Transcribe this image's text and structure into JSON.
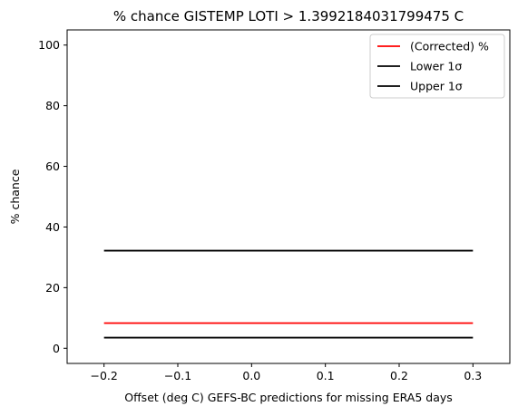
{
  "chart_data": {
    "type": "line",
    "title": "% chance GISTEMP LOTI > 1.3992184031799475 C",
    "xlabel": "Offset (deg C) GEFS-BC predictions for missing ERA5 days",
    "ylabel": "% chance",
    "xlim": [
      -0.25,
      0.35
    ],
    "ylim": [
      -5,
      105
    ],
    "xticks": [
      -0.2,
      -0.1,
      0.0,
      0.1,
      0.2,
      0.3
    ],
    "xtick_labels": [
      "−0.2",
      "−0.1",
      "0.0",
      "0.1",
      "0.2",
      "0.3"
    ],
    "yticks": [
      0,
      20,
      40,
      60,
      80,
      100
    ],
    "ytick_labels": [
      "0",
      "20",
      "40",
      "60",
      "80",
      "100"
    ],
    "grid": false,
    "legend_position": "top-right",
    "series": [
      {
        "name": "(Corrected) %",
        "color": "#ff0000",
        "x": [
          -0.2,
          0.3
        ],
        "y": [
          8.3,
          8.3
        ]
      },
      {
        "name": "Lower 1σ",
        "color": "#000000",
        "x": [
          -0.2,
          0.3
        ],
        "y": [
          3.5,
          3.5
        ]
      },
      {
        "name": "Upper 1σ",
        "color": "#000000",
        "x": [
          -0.2,
          0.3
        ],
        "y": [
          32.2,
          32.2
        ]
      }
    ]
  }
}
